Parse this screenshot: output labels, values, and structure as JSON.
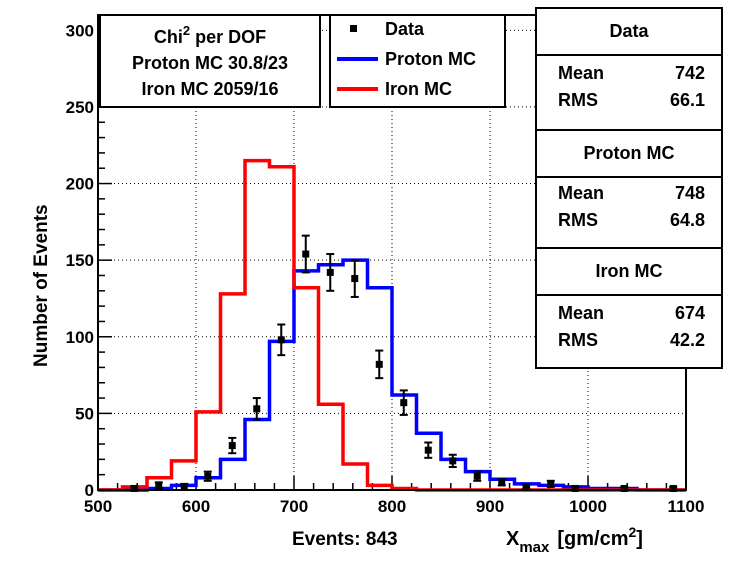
{
  "chart_data": {
    "type": "histogram",
    "xlabel_main": "X",
    "xlabel_sub": "max",
    "xlabel_units_pre": "[gm/cm",
    "xlabel_units_sup": "2",
    "xlabel_units_post": "]",
    "ylabel": "Number of Events",
    "events_label": "Events: 843",
    "xlim": [
      500,
      1100
    ],
    "ylim": [
      0,
      310
    ],
    "xticks": [
      500,
      600,
      700,
      800,
      900,
      1000,
      1100
    ],
    "yticks": [
      0,
      50,
      100,
      150,
      200,
      250,
      300
    ],
    "bin_edges": [
      500,
      525,
      550,
      575,
      600,
      625,
      650,
      675,
      700,
      725,
      750,
      775,
      800,
      825,
      850,
      875,
      900,
      925,
      950,
      975,
      1000,
      1025,
      1050,
      1075,
      1100
    ],
    "series": [
      {
        "name": "Proton MC",
        "color": "#0000ff",
        "values": [
          0,
          0,
          1,
          3,
          8,
          20,
          46,
          97,
          143,
          147,
          150,
          132,
          62,
          37,
          20,
          12,
          7,
          4,
          3,
          2,
          1,
          1,
          0,
          0
        ]
      },
      {
        "name": "Iron MC",
        "color": "#ff0000",
        "values": [
          0,
          2,
          8,
          19,
          51,
          128,
          215,
          211,
          132,
          56,
          17,
          3,
          1,
          0,
          0,
          0,
          0,
          0,
          0,
          0,
          0,
          0,
          0,
          0
        ]
      }
    ],
    "data_points": {
      "name": "Data",
      "color": "#000000",
      "x": [
        537,
        562,
        588,
        612,
        637,
        662,
        687,
        712,
        737,
        762,
        787,
        812,
        837,
        862,
        887,
        912,
        937,
        962,
        987,
        1037,
        1087
      ],
      "y": [
        1,
        3,
        2,
        9,
        29,
        53,
        98,
        154,
        142,
        138,
        82,
        57,
        26,
        19,
        9,
        5,
        2,
        4,
        1,
        1,
        1
      ],
      "err": [
        1,
        2,
        2,
        3,
        5,
        7,
        10,
        12,
        12,
        12,
        9,
        8,
        5,
        4,
        3,
        2,
        1,
        2,
        1,
        1,
        1
      ]
    },
    "legend": [
      "Data",
      "Proton MC",
      "Iron MC"
    ],
    "legend_position": "top-center",
    "grid": true
  },
  "chi_box": {
    "line1_pre": "Chi",
    "line1_sup": "2",
    "line1_post": " per DOF",
    "line2": "Proton MC 30.8/23",
    "line3": "Iron MC 2059/16"
  },
  "stats": [
    {
      "title": "Data",
      "mean_label": "Mean",
      "mean": "742",
      "rms_label": "RMS",
      "rms": "66.1"
    },
    {
      "title": "Proton MC",
      "mean_label": "Mean",
      "mean": "748",
      "rms_label": "RMS",
      "rms": "64.8"
    },
    {
      "title": "Iron MC",
      "mean_label": "Mean",
      "mean": "674",
      "rms_label": "RMS",
      "rms": "42.2"
    }
  ]
}
